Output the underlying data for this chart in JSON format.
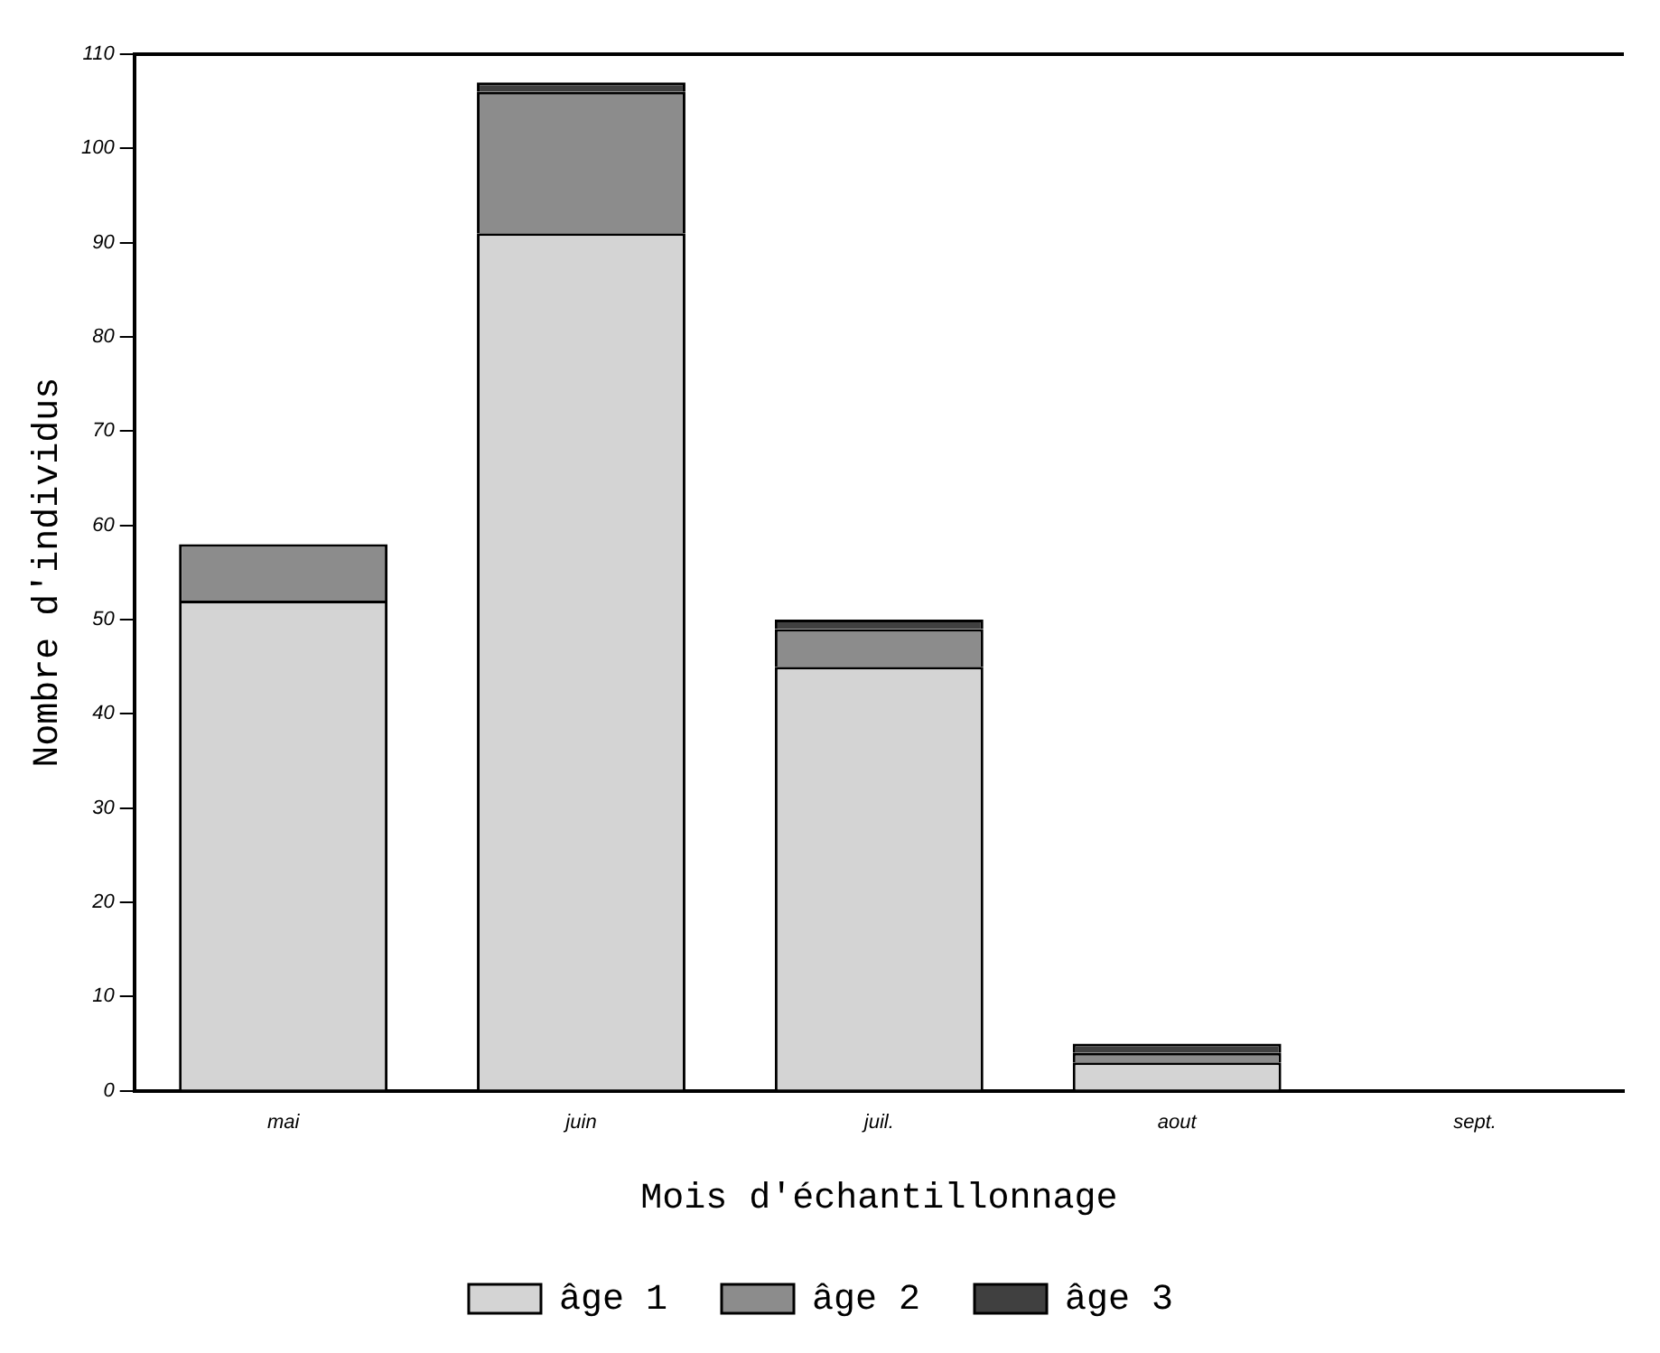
{
  "chart_data": {
    "type": "bar",
    "stacked": true,
    "xlabel": "Mois d'échantillonnage",
    "ylabel": "Nombre d'individus",
    "categories": [
      "mai",
      "juin",
      "juil.",
      "aout",
      "sept."
    ],
    "series": [
      {
        "name": "âge 1",
        "color": "#d4d4d4",
        "values": [
          52,
          91,
          45,
          3,
          0
        ]
      },
      {
        "name": "âge 2",
        "color": "#8c8c8c",
        "values": [
          6,
          15,
          4,
          1,
          0
        ]
      },
      {
        "name": "âge 3",
        "color": "#404040",
        "values": [
          0,
          1,
          1,
          1,
          0
        ]
      }
    ],
    "ylim": [
      0,
      110
    ],
    "yticks": [
      0,
      10,
      20,
      30,
      40,
      50,
      60,
      70,
      80,
      90,
      100,
      110
    ],
    "grid": false,
    "legend": "bottom"
  }
}
